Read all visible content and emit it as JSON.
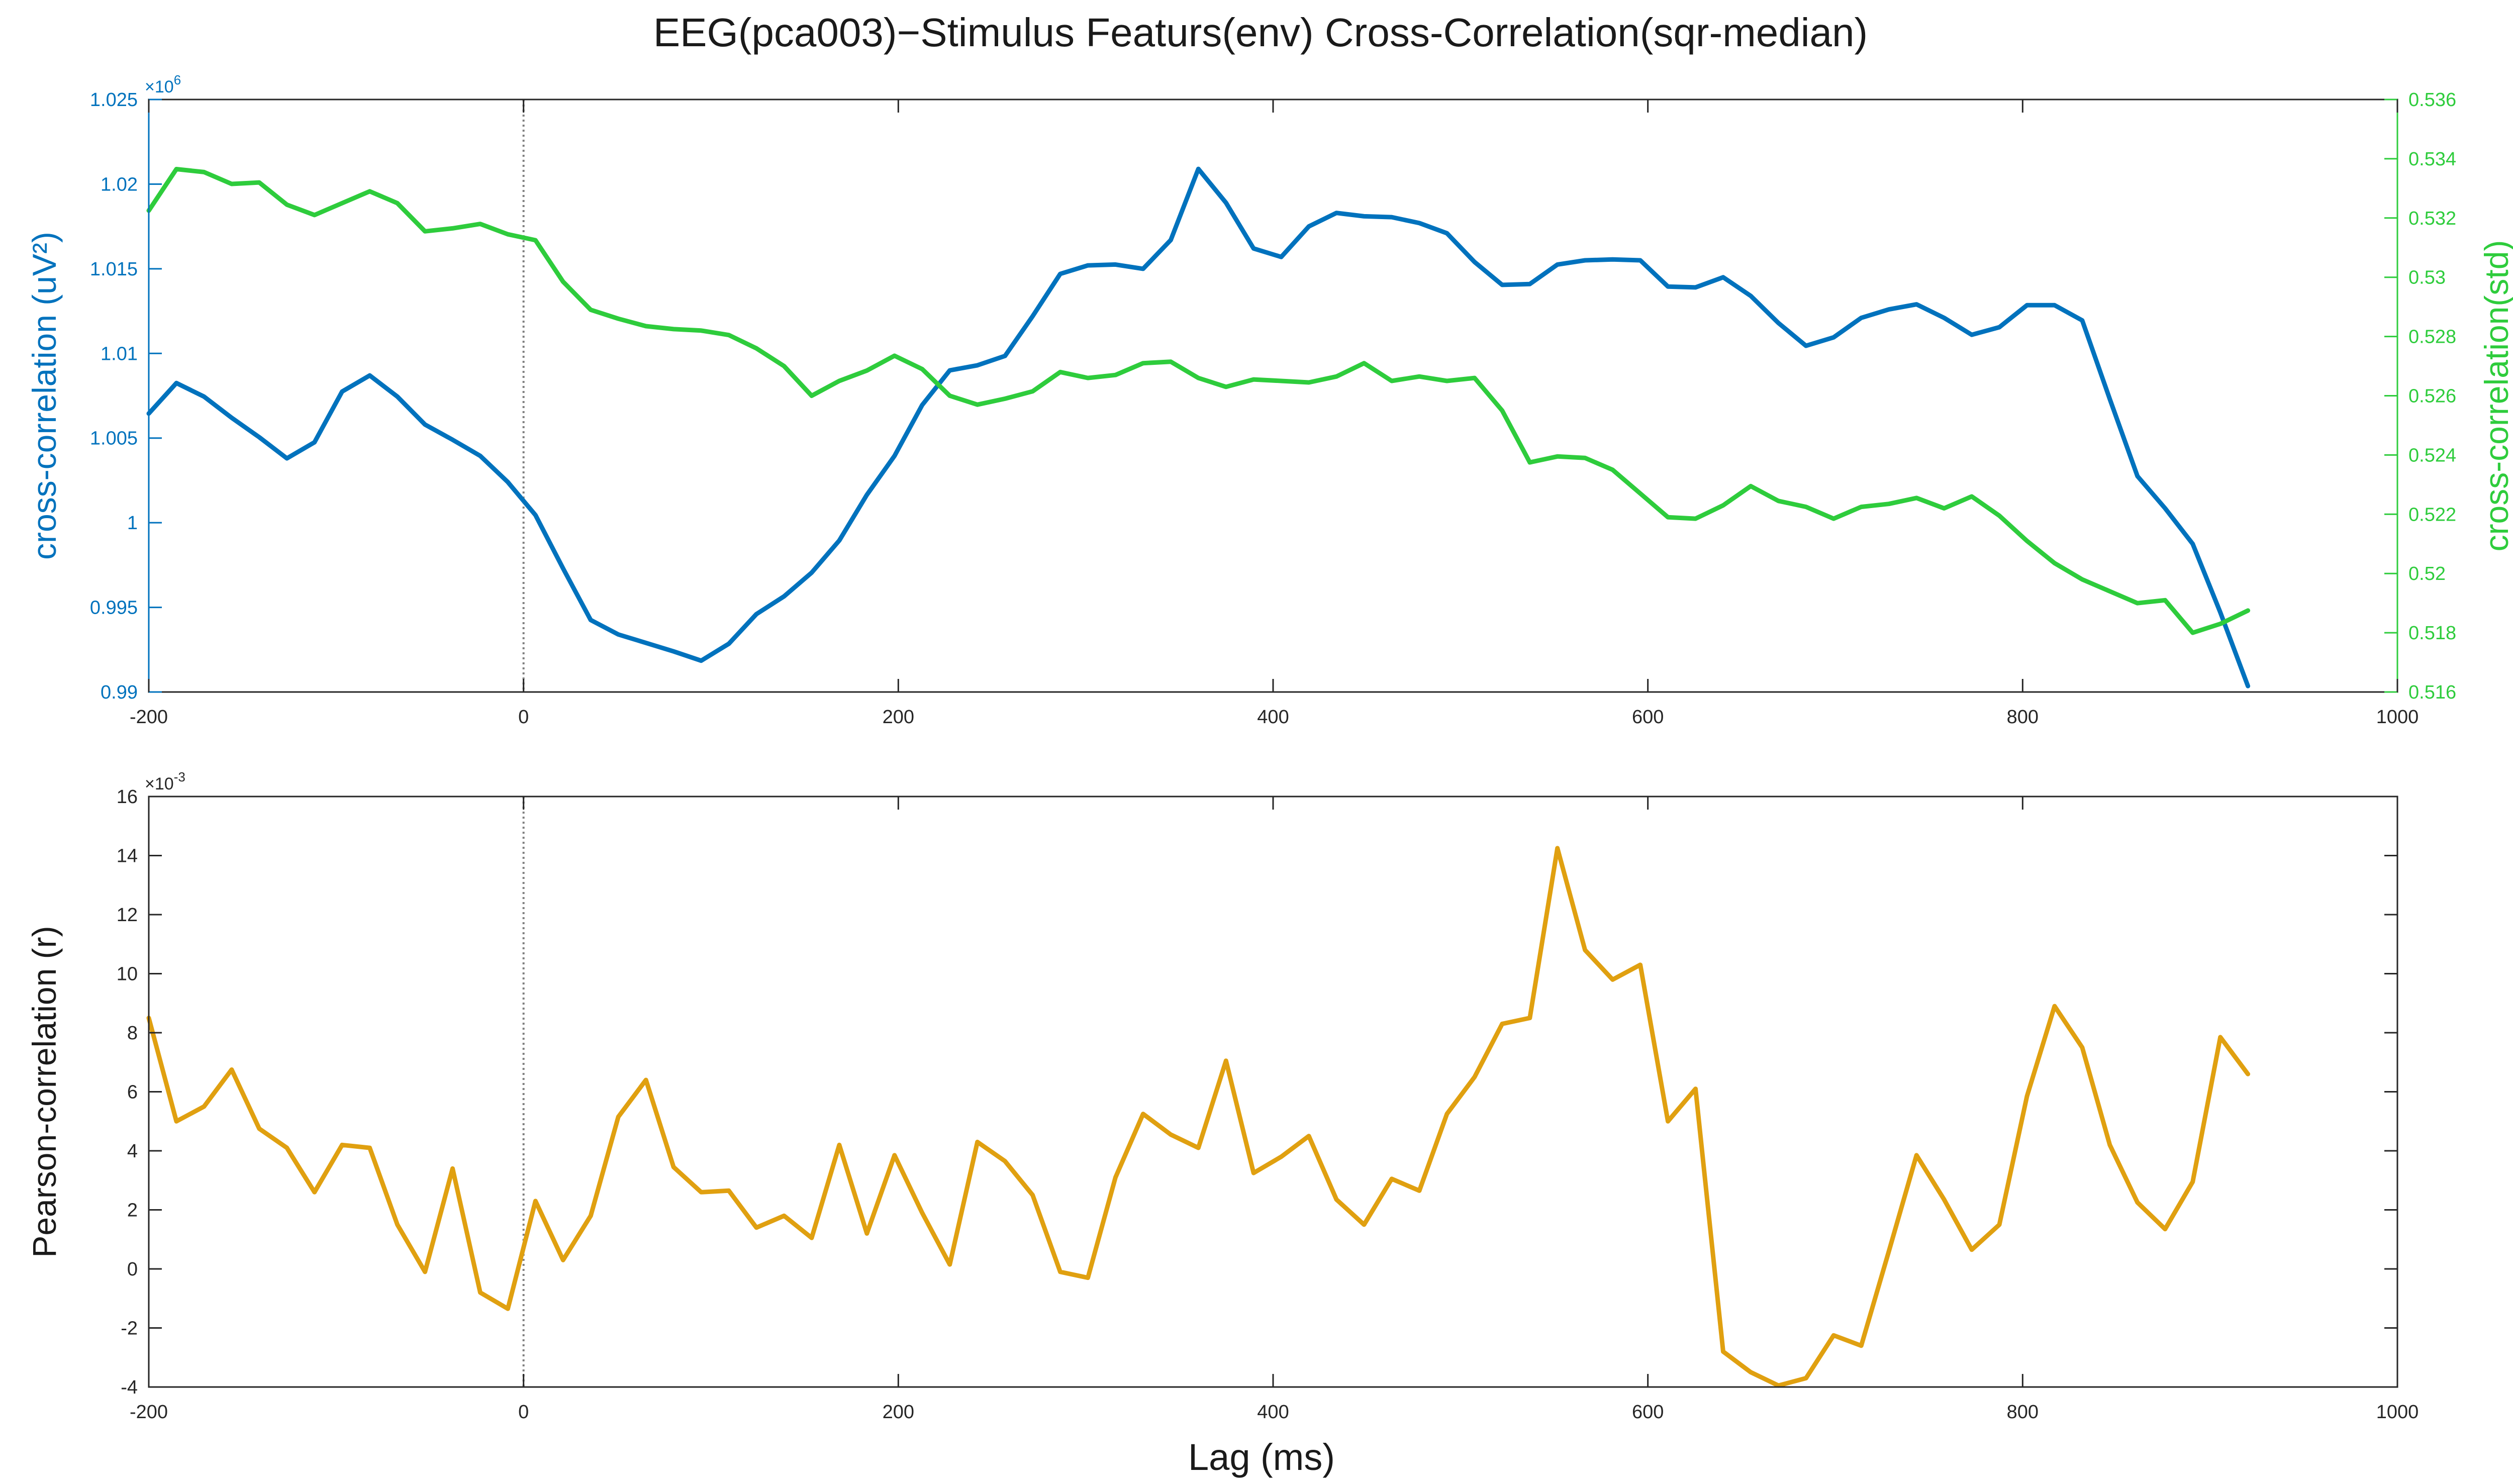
{
  "figure": {
    "title": "EEG(pca003)−Stimulus Featurs(env) Cross-Correlation(sqr-median)",
    "xlabel": "Lag (ms)"
  },
  "colors": {
    "blue": "#0072bd",
    "green": "#2ecc3c",
    "orange": "#e0a010",
    "axis": "#262626",
    "zero_line": "#808080"
  },
  "chart_data": [
    {
      "type": "line",
      "title": "",
      "xlabel": "",
      "xlim": [
        -200,
        1000
      ],
      "xticks": [
        -200,
        0,
        200,
        400,
        600,
        800,
        1000
      ],
      "x_start": -200,
      "x_step": 14.74,
      "zero_line_x": 0,
      "grid": false,
      "left_axis": {
        "label": "cross-correlation (uV²)",
        "ylim": [
          0.99,
          1.025
        ],
        "ticks": [
          0.99,
          0.995,
          1.0,
          1.005,
          1.01,
          1.015,
          1.02,
          1.025
        ],
        "tick_labels": [
          "0.99",
          "0.995",
          "1",
          "1.005",
          "1.01",
          "1.015",
          "1.02",
          "1.025"
        ],
        "exponent_label": "×10",
        "exponent_power": "6",
        "color": "#0072bd"
      },
      "right_axis": {
        "label": "cross-correlation(std)",
        "ylim": [
          0.516,
          0.536
        ],
        "ticks": [
          0.516,
          0.518,
          0.52,
          0.522,
          0.524,
          0.526,
          0.528,
          0.53,
          0.532,
          0.534,
          0.536
        ],
        "tick_labels": [
          "0.516",
          "0.518",
          "0.52",
          "0.522",
          "0.524",
          "0.526",
          "0.528",
          "0.53",
          "0.532",
          "0.534",
          "0.536"
        ],
        "color": "#2ecc3c"
      },
      "series": [
        {
          "axis": "left",
          "color": "#0072bd",
          "values": [
            1.00645,
            1.00825,
            1.00745,
            1.0062,
            1.00505,
            1.0038,
            1.00475,
            1.00775,
            1.0087,
            1.00745,
            1.0058,
            1.0049,
            1.00395,
            1.0024,
            1.00045,
            0.9973,
            0.99425,
            0.9934,
            0.9929,
            0.9924,
            0.99185,
            0.99285,
            0.9946,
            0.99565,
            0.99705,
            0.99895,
            1.00165,
            1.00395,
            1.00695,
            1.009,
            1.0093,
            1.00985,
            1.0122,
            1.0147,
            1.0152,
            1.01525,
            1.015,
            1.0167,
            1.0209,
            1.0189,
            1.0162,
            1.0157,
            1.0175,
            1.0183,
            1.0181,
            1.01805,
            1.0177,
            1.0171,
            1.0154,
            1.01405,
            1.0141,
            1.01525,
            1.0155,
            1.01555,
            1.0155,
            1.01395,
            1.0139,
            1.0145,
            1.0134,
            1.0118,
            1.01045,
            1.01095,
            1.0121,
            1.0126,
            1.0129,
            1.0121,
            1.0111,
            1.01155,
            1.01285,
            1.01285,
            1.01195,
            1.0073,
            1.00275,
            1.00085,
            0.99875,
            0.9947,
            0.99035
          ]
        },
        {
          "axis": "right",
          "color": "#2ecc3c",
          "values": [
            0.53225,
            0.53365,
            0.53355,
            0.53315,
            0.5332,
            0.53245,
            0.5321,
            0.5325,
            0.5329,
            0.5325,
            0.53155,
            0.53165,
            0.5318,
            0.53145,
            0.53125,
            0.52985,
            0.5289,
            0.5286,
            0.52835,
            0.52825,
            0.5282,
            0.52805,
            0.5276,
            0.527,
            0.526,
            0.5265,
            0.52685,
            0.52735,
            0.5269,
            0.526,
            0.5257,
            0.5259,
            0.52615,
            0.5268,
            0.5266,
            0.5267,
            0.5271,
            0.52715,
            0.5266,
            0.5263,
            0.52655,
            0.5265,
            0.52645,
            0.52665,
            0.5271,
            0.5265,
            0.52665,
            0.5265,
            0.5266,
            0.5255,
            0.52375,
            0.52395,
            0.5239,
            0.5235,
            0.5227,
            0.5219,
            0.52185,
            0.5223,
            0.52295,
            0.52245,
            0.52225,
            0.52185,
            0.52225,
            0.52235,
            0.52255,
            0.5222,
            0.5226,
            0.52195,
            0.5211,
            0.52035,
            0.5198,
            0.5194,
            0.519,
            0.5191,
            0.518,
            0.5183,
            0.51875
          ]
        }
      ]
    },
    {
      "type": "line",
      "title": "",
      "xlabel": "Lag (ms)",
      "xlim": [
        -200,
        1000
      ],
      "xticks": [
        -200,
        0,
        200,
        400,
        600,
        800,
        1000
      ],
      "x_start": -200,
      "x_step": 14.74,
      "zero_line_x": 0,
      "grid": false,
      "left_axis": {
        "label": "Pearson-correlation (r)",
        "ylim": [
          -4,
          16
        ],
        "ticks": [
          -4,
          -2,
          0,
          2,
          4,
          6,
          8,
          10,
          12,
          14,
          16
        ],
        "tick_labels": [
          "-4",
          "-2",
          "0",
          "2",
          "4",
          "6",
          "8",
          "10",
          "12",
          "14",
          "16"
        ],
        "exponent_label": "×10",
        "exponent_power": "-3",
        "color": "#262626"
      },
      "series": [
        {
          "axis": "left",
          "color": "#e0a010",
          "values": [
            8.5,
            5.0,
            5.5,
            6.75,
            4.75,
            4.1,
            2.6,
            4.2,
            4.1,
            1.5,
            -0.1,
            3.4,
            -0.8,
            -1.35,
            2.3,
            0.3,
            1.8,
            5.15,
            6.4,
            3.45,
            2.6,
            2.65,
            1.4,
            1.8,
            1.05,
            4.2,
            1.2,
            3.85,
            1.9,
            0.15,
            4.3,
            3.65,
            2.5,
            -0.1,
            -0.3,
            3.1,
            5.25,
            4.55,
            4.1,
            7.05,
            3.25,
            3.8,
            4.5,
            2.35,
            1.5,
            3.05,
            2.65,
            5.25,
            6.5,
            8.3,
            8.5,
            14.25,
            10.8,
            9.8,
            10.3,
            5.0,
            6.1,
            -2.8,
            -3.5,
            -3.95,
            -3.7,
            -2.25,
            -2.6,
            0.6,
            3.85,
            2.35,
            0.65,
            1.5,
            5.85,
            8.9,
            7.5,
            4.2,
            2.25,
            1.35,
            2.95,
            7.85,
            6.6
          ]
        }
      ]
    }
  ]
}
